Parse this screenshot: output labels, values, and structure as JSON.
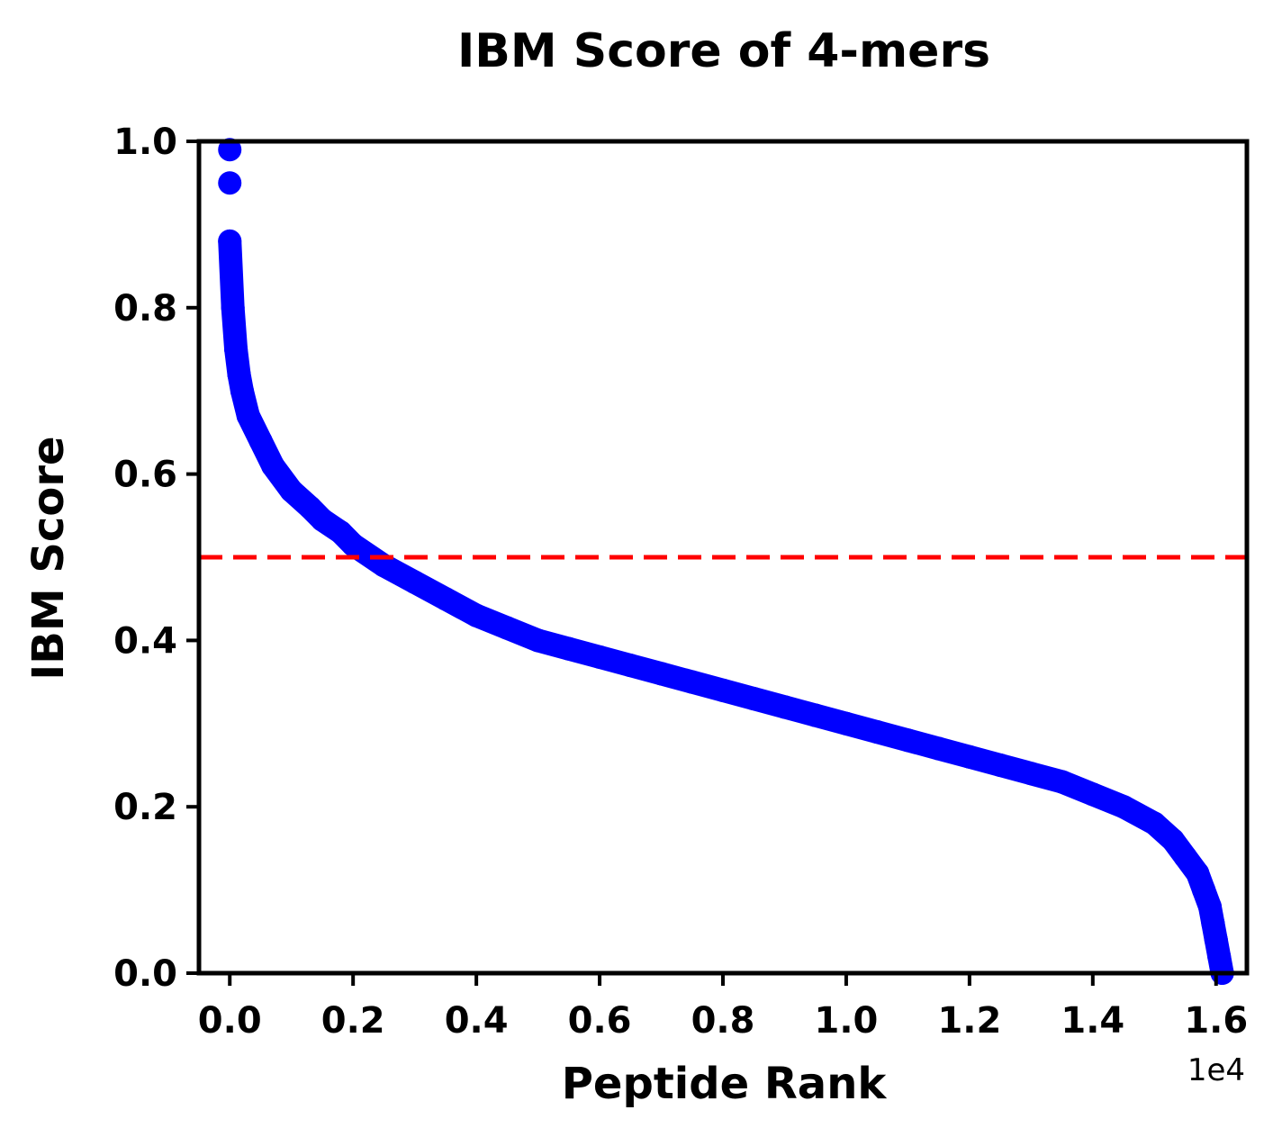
{
  "chart_data": {
    "type": "scatter",
    "title": "IBM Score of 4-mers",
    "xlabel": "Peptide Rank",
    "ylabel": "IBM Score",
    "x_offset_label": "1e4",
    "xlim": [
      -0.05,
      1.65
    ],
    "ylim": [
      0.0,
      1.0
    ],
    "x_ticks": [
      0.0,
      0.2,
      0.4,
      0.6,
      0.8,
      1.0,
      1.2,
      1.4,
      1.6
    ],
    "x_tick_labels": [
      "0.0",
      "0.2",
      "0.4",
      "0.6",
      "0.8",
      "1.0",
      "1.2",
      "1.4",
      "1.6"
    ],
    "y_ticks": [
      0.0,
      0.2,
      0.4,
      0.6,
      0.8,
      1.0
    ],
    "y_tick_labels": [
      "0.0",
      "0.2",
      "0.4",
      "0.6",
      "0.8",
      "1.0"
    ],
    "grid": false,
    "reference_line": {
      "axis": "y",
      "value": 0.5,
      "style": "dashed",
      "color": "#ff0000"
    },
    "series": [
      {
        "color": "#0000ff",
        "marker": "circle",
        "x": [
          0.0,
          0.0,
          0.0,
          0.005,
          0.01,
          0.015,
          0.02,
          0.03,
          0.05,
          0.07,
          0.1,
          0.13,
          0.15,
          0.18,
          0.2,
          0.25,
          0.3,
          0.35,
          0.4,
          0.45,
          0.5,
          0.55,
          0.6,
          0.65,
          0.7,
          0.75,
          0.8,
          0.85,
          0.9,
          0.95,
          1.0,
          1.05,
          1.1,
          1.15,
          1.2,
          1.25,
          1.3,
          1.35,
          1.4,
          1.45,
          1.5,
          1.53,
          1.55,
          1.57,
          1.58,
          1.59,
          1.595,
          1.6,
          1.605,
          1.61
        ],
        "y": [
          0.99,
          0.95,
          0.88,
          0.8,
          0.75,
          0.72,
          0.7,
          0.67,
          0.64,
          0.61,
          0.58,
          0.56,
          0.545,
          0.53,
          0.515,
          0.49,
          0.47,
          0.45,
          0.43,
          0.415,
          0.4,
          0.39,
          0.38,
          0.37,
          0.36,
          0.35,
          0.34,
          0.33,
          0.32,
          0.31,
          0.3,
          0.29,
          0.28,
          0.27,
          0.26,
          0.25,
          0.24,
          0.23,
          0.215,
          0.2,
          0.18,
          0.16,
          0.14,
          0.12,
          0.1,
          0.08,
          0.06,
          0.04,
          0.02,
          0.0
        ]
      }
    ]
  }
}
